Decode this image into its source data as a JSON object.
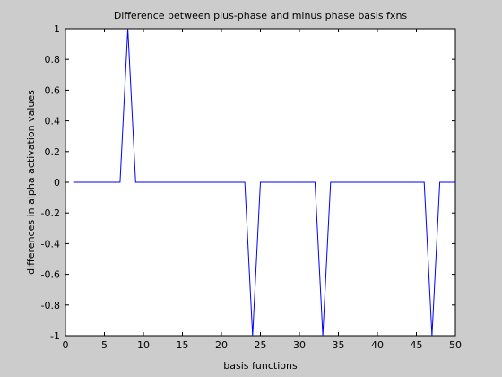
{
  "chart_data": {
    "type": "line",
    "title": "Difference between plus-phase and minus phase basis fxns",
    "xlabel": "basis functions",
    "ylabel": "differences in alpha activation values",
    "xlim": [
      0,
      50
    ],
    "ylim": [
      -1,
      1
    ],
    "xticks": [
      0,
      5,
      10,
      15,
      20,
      25,
      30,
      35,
      40,
      45,
      50
    ],
    "yticks": [
      1,
      0.8,
      0.6,
      0.4,
      0.2,
      0,
      -0.2,
      -0.4,
      -0.6,
      -0.8,
      -1
    ],
    "ytick_labels": [
      "1",
      "0.8",
      "0.6",
      "0.4",
      "0.2",
      "0",
      "-0.2",
      "-0.4",
      "-0.6",
      "-0.8",
      "-1"
    ],
    "grid": false,
    "series": [
      {
        "color": "#0000ff",
        "x": [
          1,
          2,
          3,
          4,
          5,
          6,
          7,
          8,
          9,
          10,
          11,
          12,
          13,
          14,
          15,
          16,
          17,
          18,
          19,
          20,
          21,
          22,
          23,
          24,
          25,
          26,
          27,
          28,
          29,
          30,
          31,
          32,
          33,
          34,
          35,
          36,
          37,
          38,
          39,
          40,
          41,
          42,
          43,
          44,
          45,
          46,
          47,
          48,
          49,
          50
        ],
        "y": [
          0,
          0,
          0,
          0,
          0,
          0,
          0,
          1,
          0,
          0,
          0,
          0,
          0,
          0,
          0,
          0,
          0,
          0,
          0,
          0,
          0,
          0,
          0,
          -1,
          0,
          0,
          0,
          0,
          0,
          0,
          0,
          0,
          -1,
          0,
          0,
          0,
          0,
          0,
          0,
          0,
          0,
          0,
          0,
          0,
          0,
          0,
          -1,
          0,
          0,
          0
        ]
      }
    ]
  }
}
